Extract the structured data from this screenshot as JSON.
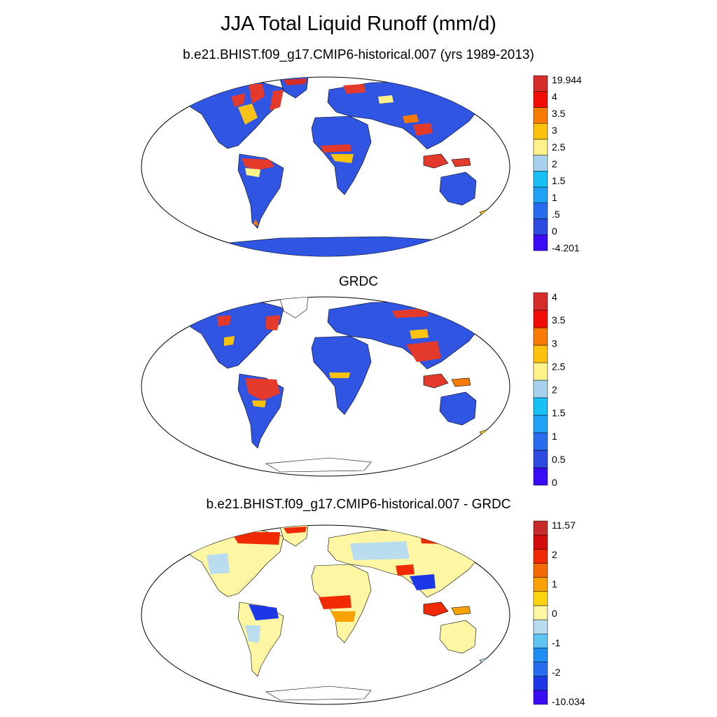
{
  "main_title": "JJA Total Liquid Runoff (mm/d)",
  "panels": [
    {
      "title": "b.e21.BHIST.f09_g17.CMIP6-historical.007 (yrs 1989-2013)",
      "colorbar": {
        "colors": [
          "#3a0cf5",
          "#2c4be0",
          "#2a6cf0",
          "#1ea2f6",
          "#17c1f5",
          "#a6d2ee",
          "#fff28a",
          "#fcc20e",
          "#f97a05",
          "#f20e04",
          "#d62d2b"
        ],
        "labels": [
          "19.944",
          "4",
          "3.5",
          "3",
          "2.5",
          "2",
          "1.5",
          "1",
          ".5",
          "0",
          "-4.201"
        ]
      }
    },
    {
      "title": "GRDC",
      "colorbar": {
        "colors": [
          "#3a0cf5",
          "#2c4be0",
          "#2a6cf0",
          "#1ea2f6",
          "#17c1f5",
          "#a6d2ee",
          "#fff28a",
          "#fcc20e",
          "#f97a05",
          "#f20e04",
          "#d62d2b"
        ],
        "labels": [
          "4",
          "3.5",
          "3",
          "2.5",
          "2",
          "1.5",
          "1",
          "0.5",
          "0"
        ]
      }
    },
    {
      "title": "b.e21.BHIST.f09_g17.CMIP6-historical.007 - GRDC",
      "colorbar": {
        "colors": [
          "#3a0cf5",
          "#1c38e6",
          "#2a6cf0",
          "#1e8ef4",
          "#5fc3f4",
          "#b9dcef",
          "#fff6a3",
          "#fcd30f",
          "#f9a205",
          "#f66a05",
          "#ef2a04",
          "#d30d0d",
          "#c62a2a"
        ],
        "labels": [
          "11.57",
          "2",
          "1",
          "0",
          "-1",
          "-2",
          "-10.034"
        ]
      }
    }
  ]
}
